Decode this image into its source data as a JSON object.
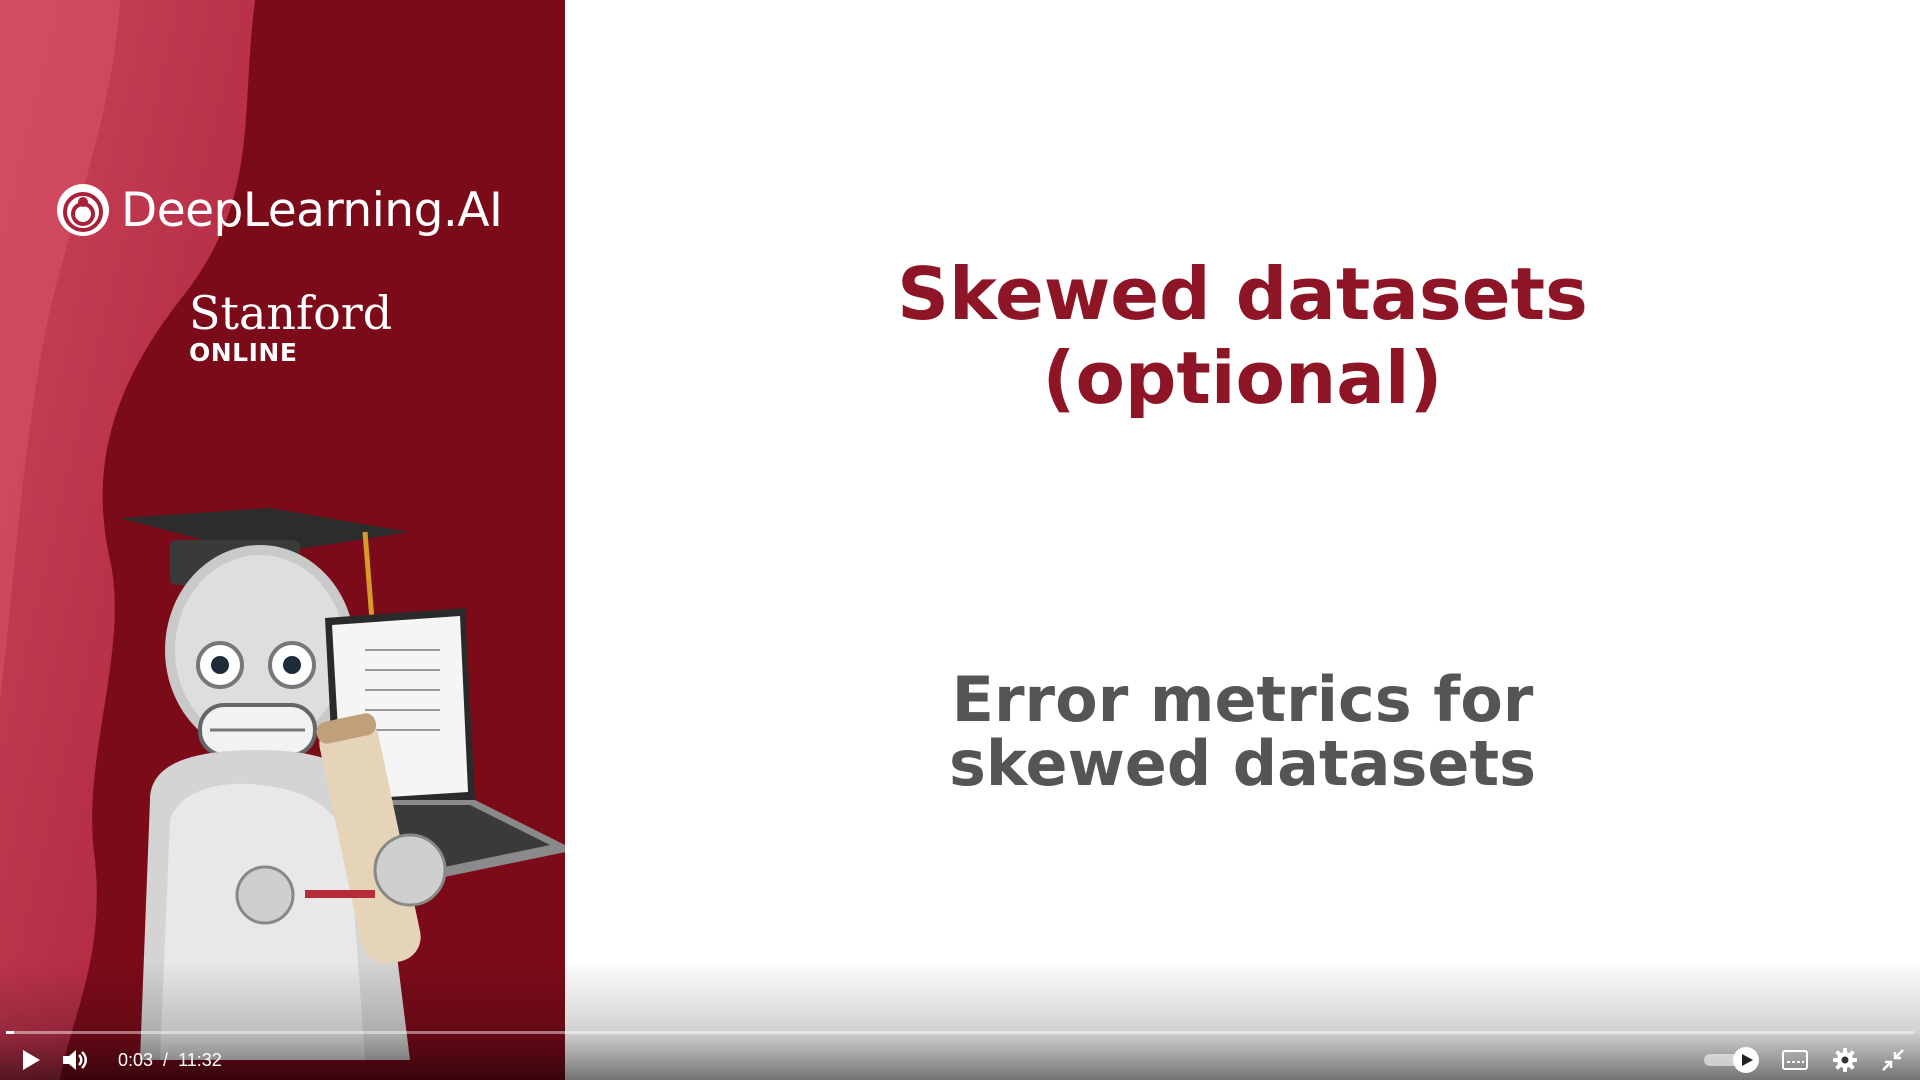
{
  "brand": {
    "logo_text": "DeepLearning.AI"
  },
  "partner": {
    "name": "Stanford",
    "sub": "ONLINE"
  },
  "slide": {
    "title_line1": "Skewed datasets",
    "title_line2": "(optional)",
    "subtitle_line1": "Error metrics for",
    "subtitle_line2": "skewed datasets"
  },
  "player": {
    "current_time": "0:03",
    "separator": "/",
    "duration": "11:32",
    "progress_fraction": 0.004,
    "icons": {
      "play": "play-icon",
      "volume": "volume-icon",
      "autoplay": "autoplay-toggle-icon",
      "captions": "captions-icon",
      "settings": "gear-icon",
      "exit_fullscreen": "exit-fullscreen-icon"
    }
  },
  "colors": {
    "brand_red": "#8d1525",
    "panel_dark": "#7c0b1a",
    "panel_light": "#c73a52",
    "subtitle_gray": "#555555"
  }
}
